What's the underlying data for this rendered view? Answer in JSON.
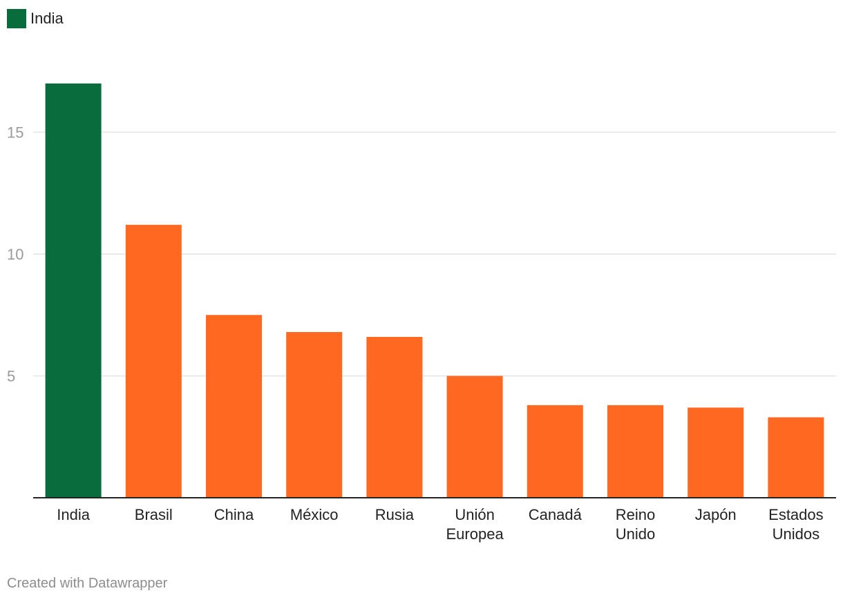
{
  "legend": {
    "label": "India",
    "color": "#086c3c"
  },
  "colors": {
    "highlight": "#086c3c",
    "default": "#ff6820",
    "grid": "#e3e3e3",
    "axis": "#222222"
  },
  "chart_data": {
    "type": "bar",
    "categories": [
      "India",
      "Brasil",
      "China",
      "México",
      "Rusia",
      "Unión Europea",
      "Canadá",
      "Reino Unido",
      "Japón",
      "Estados Unidos"
    ],
    "category_lines": [
      [
        "India"
      ],
      [
        "Brasil"
      ],
      [
        "China"
      ],
      [
        "México"
      ],
      [
        "Rusia"
      ],
      [
        "Unión",
        "Europea"
      ],
      [
        "Canadá"
      ],
      [
        "Reino",
        "Unido"
      ],
      [
        "Japón"
      ],
      [
        "Estados",
        "Unidos"
      ]
    ],
    "values": [
      17.0,
      11.2,
      7.5,
      6.8,
      6.6,
      5.0,
      3.8,
      3.8,
      3.7,
      3.3
    ],
    "highlight": "India",
    "yticks": [
      5,
      10,
      15
    ],
    "ylim": [
      0,
      18.5
    ],
    "grid": true,
    "legend_position": "top-left",
    "title": "",
    "xlabel": "",
    "ylabel": ""
  },
  "footer": {
    "credit": "Created with Datawrapper"
  }
}
